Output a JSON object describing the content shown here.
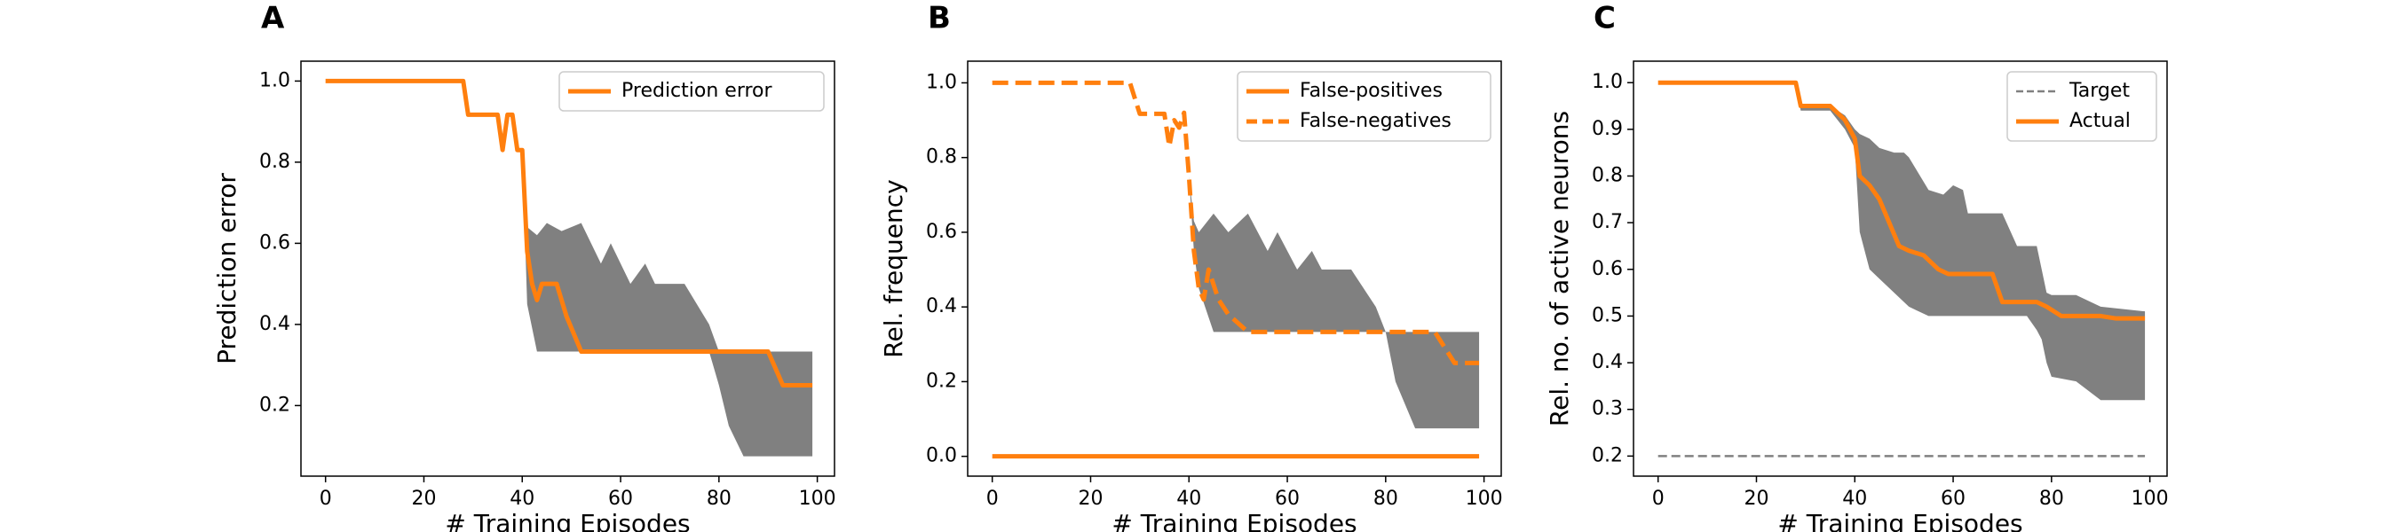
{
  "chart_data": [
    {
      "type": "line",
      "title": "A",
      "y_label": "Prediction error",
      "x_label": "# Training Episodes",
      "xlim": [
        -5,
        103.5
      ],
      "xticks": [
        0,
        20,
        40,
        60,
        80,
        100
      ],
      "ylim": [
        0.026,
        1.049
      ],
      "yticks": [
        0.2,
        0.4,
        0.6,
        0.8,
        {
          "value": 1,
          "label": "1.0"
        }
      ],
      "legend": "upper-right",
      "band": {
        "color": "#808080",
        "x": [
          0,
          28,
          29,
          35,
          36,
          37,
          38,
          39,
          40,
          41,
          43,
          45,
          48,
          52,
          56,
          58,
          60,
          62,
          65,
          67,
          73,
          78,
          80,
          82,
          85,
          99
        ],
        "upper": [
          1,
          1,
          0.917,
          0.917,
          0.83,
          0.917,
          0.917,
          0.83,
          0.83,
          0.64,
          0.62,
          0.65,
          0.63,
          0.65,
          0.55,
          0.6,
          0.55,
          0.5,
          0.55,
          0.5,
          0.5,
          0.4,
          0.333,
          0.333,
          0.333,
          0.333
        ],
        "lower": [
          1,
          1,
          0.917,
          0.917,
          0.83,
          0.917,
          0.917,
          0.83,
          0.83,
          0.45,
          0.333,
          0.333,
          0.333,
          0.333,
          0.333,
          0.333,
          0.333,
          0.333,
          0.333,
          0.333,
          0.333,
          0.333,
          0.25,
          0.15,
          0.075,
          0.075
        ]
      },
      "series": [
        {
          "name": "Prediction error",
          "color": "#ff7f0e",
          "style": "solid",
          "x": [
            0,
            28,
            29,
            35,
            36,
            37,
            38,
            39,
            40,
            41,
            42,
            43,
            44,
            47,
            49,
            52,
            90,
            93,
            99
          ],
          "values": [
            1,
            1,
            0.917,
            0.917,
            0.83,
            0.917,
            0.917,
            0.83,
            0.83,
            0.58,
            0.5,
            0.46,
            0.5,
            0.5,
            0.42,
            0.333,
            0.333,
            0.25,
            0.25
          ]
        }
      ]
    },
    {
      "type": "line",
      "title": "B",
      "y_label": "Rel. frequency",
      "x_label": "# Training Episodes",
      "xlim": [
        -5,
        103.5
      ],
      "xticks": [
        0,
        20,
        40,
        60,
        80,
        100
      ],
      "ylim": [
        -0.053,
        1.058
      ],
      "yticks": [
        {
          "value": 0,
          "label": "0.0"
        },
        0.2,
        0.4,
        0.6,
        0.8,
        {
          "value": 1,
          "label": "1.0"
        }
      ],
      "legend": "upper-right",
      "band": {
        "color": "#808080",
        "x": [
          0,
          28,
          30,
          35,
          36,
          37,
          38,
          39,
          40,
          41,
          42,
          45,
          48,
          52,
          56,
          58,
          60,
          62,
          65,
          67,
          73,
          78,
          80,
          82,
          86,
          99
        ],
        "upper": [
          1,
          1,
          0.917,
          0.917,
          0.83,
          0.9,
          0.88,
          0.92,
          0.75,
          0.63,
          0.6,
          0.65,
          0.6,
          0.65,
          0.55,
          0.6,
          0.55,
          0.5,
          0.55,
          0.5,
          0.5,
          0.4,
          0.333,
          0.333,
          0.333,
          0.333
        ],
        "lower": [
          1,
          1,
          0.917,
          0.917,
          0.83,
          0.9,
          0.88,
          0.92,
          0.75,
          0.55,
          0.45,
          0.333,
          0.333,
          0.333,
          0.333,
          0.333,
          0.333,
          0.333,
          0.333,
          0.333,
          0.333,
          0.333,
          0.333,
          0.2,
          0.075,
          0.075
        ]
      },
      "series": [
        {
          "name": "False-positives",
          "color": "#ff7f0e",
          "style": "solid",
          "x": [
            0,
            99
          ],
          "values": [
            0,
            0
          ]
        },
        {
          "name": "False-negatives",
          "color": "#ff7f0e",
          "style": "dashed",
          "x": [
            0,
            28,
            30,
            35,
            36,
            37,
            38,
            39,
            40,
            41,
            42,
            43,
            44,
            46,
            48,
            52,
            90,
            94,
            99
          ],
          "values": [
            1,
            1,
            0.917,
            0.917,
            0.83,
            0.9,
            0.88,
            0.92,
            0.75,
            0.55,
            0.45,
            0.42,
            0.5,
            0.42,
            0.38,
            0.333,
            0.333,
            0.25,
            0.25
          ]
        }
      ]
    },
    {
      "type": "line",
      "title": "C",
      "y_label": "Rel. no. of active neurons",
      "x_label": "# Training Episodes",
      "xlim": [
        -5,
        103.5
      ],
      "xticks": [
        0,
        20,
        40,
        60,
        80,
        100
      ],
      "ylim": [
        0.157,
        1.046
      ],
      "yticks": [
        0.2,
        0.3,
        0.4,
        0.5,
        0.6,
        0.7,
        0.8,
        0.9,
        {
          "value": 1,
          "label": "1.0"
        }
      ],
      "legend": "upper-right",
      "band": {
        "color": "#808080",
        "x": [
          0,
          28,
          29,
          35,
          38,
          40,
          41,
          43,
          45,
          48,
          50,
          51,
          55,
          58,
          60,
          62,
          63,
          70,
          73,
          75,
          77,
          78,
          79,
          80,
          85,
          90,
          99
        ],
        "upper": [
          1,
          1,
          0.95,
          0.95,
          0.93,
          0.9,
          0.89,
          0.88,
          0.86,
          0.85,
          0.85,
          0.84,
          0.77,
          0.76,
          0.78,
          0.77,
          0.72,
          0.72,
          0.65,
          0.65,
          0.65,
          0.6,
          0.55,
          0.545,
          0.545,
          0.52,
          0.51
        ],
        "lower": [
          1,
          1,
          0.94,
          0.94,
          0.9,
          0.86,
          0.68,
          0.6,
          0.58,
          0.55,
          0.53,
          0.52,
          0.5,
          0.5,
          0.5,
          0.5,
          0.5,
          0.5,
          0.5,
          0.5,
          0.47,
          0.45,
          0.4,
          0.37,
          0.36,
          0.32,
          0.32
        ]
      },
      "series": [
        {
          "name": "Target",
          "color": "#808080",
          "style": "thin-dashed",
          "x": [
            0,
            99
          ],
          "values": [
            0.2,
            0.2
          ]
        },
        {
          "name": "Actual",
          "color": "#ff7f0e",
          "style": "solid",
          "x": [
            0,
            28,
            29,
            35,
            38,
            40,
            41,
            43,
            45,
            47,
            49,
            51,
            54,
            57,
            59,
            68,
            70,
            77,
            79,
            82,
            90,
            93,
            99
          ],
          "values": [
            1,
            1,
            0.95,
            0.95,
            0.92,
            0.88,
            0.8,
            0.78,
            0.75,
            0.7,
            0.65,
            0.64,
            0.63,
            0.6,
            0.59,
            0.59,
            0.53,
            0.53,
            0.52,
            0.5,
            0.5,
            0.495,
            0.495
          ]
        }
      ]
    }
  ]
}
